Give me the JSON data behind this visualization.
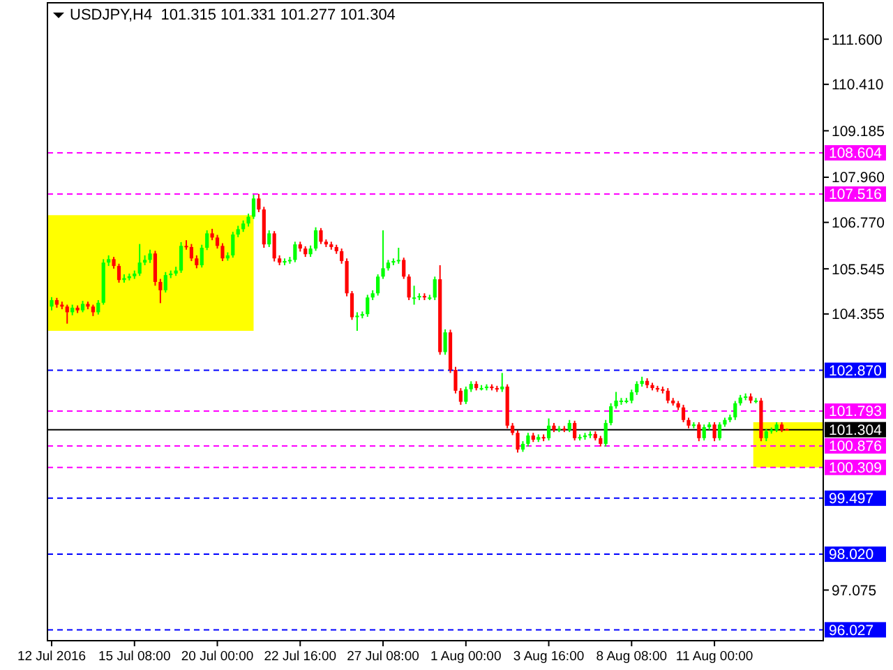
{
  "chart_data": {
    "type": "candlestick",
    "title": "USDJPY,H4  101.315 101.331 101.277 101.304",
    "categories": [
      "12 Jul 2016",
      null,
      null,
      null,
      null,
      null,
      null,
      null,
      null,
      null,
      null,
      null,
      null,
      null,
      null,
      null,
      "15 Jul 08:00",
      null,
      null,
      null,
      null,
      null,
      null,
      null,
      null,
      null,
      null,
      null,
      null,
      null,
      null,
      null,
      "20 Jul 00:00",
      null,
      null,
      null,
      null,
      null,
      null,
      null,
      null,
      null,
      null,
      null,
      null,
      null,
      null,
      null,
      "22 Jul 16:00",
      null,
      null,
      null,
      null,
      null,
      null,
      null,
      null,
      null,
      null,
      null,
      null,
      null,
      null,
      null,
      "27 Jul 08:00",
      null,
      null,
      null,
      null,
      null,
      null,
      null,
      null,
      null,
      null,
      null,
      null,
      null,
      null,
      null,
      "1 Aug 00:00",
      null,
      null,
      null,
      null,
      null,
      null,
      null,
      null,
      null,
      null,
      null,
      null,
      null,
      null,
      null,
      "3 Aug 16:00",
      null,
      null,
      null,
      null,
      null,
      null,
      null,
      null,
      null,
      null,
      null,
      null,
      null,
      null,
      null,
      "8 Aug 08:00",
      null,
      null,
      null,
      null,
      null,
      null,
      null,
      null,
      null,
      null,
      null,
      null,
      null,
      null,
      null,
      "11 Aug 00:00",
      null,
      null,
      null,
      null,
      null,
      null,
      null,
      null,
      null,
      null,
      null,
      null,
      null,
      null
    ],
    "colors": [
      "#00ff00",
      "#ff0000",
      "#ff0000",
      "#ff0000",
      "#00ff00",
      "#ff0000",
      "#00ff00",
      "#ff0000",
      "#ff0000",
      "#00ff00",
      "#00ff00",
      "#00ff00",
      "#ff0000",
      "#ff0000",
      "#00ff00",
      "#00ff00",
      "#00ff00",
      "#00ff00",
      "#00ff00",
      "#00ff00",
      "#ff0000",
      "#ff0000",
      "#00ff00",
      "#00ff00",
      "#00ff00",
      "#00ff00",
      "#ff0000",
      "#ff0000",
      "#ff0000",
      "#00ff00",
      "#00ff00",
      "#ff0000",
      "#ff0000",
      "#ff0000",
      "#00ff00",
      "#00ff00",
      "#00ff00",
      "#00ff00",
      "#00ff00",
      "#00ff00",
      "#ff0000",
      "#ff0000",
      "#00ff00",
      "#ff0000",
      "#ff0000",
      "#00ff00",
      "#00ff00",
      "#00ff00",
      "#ff0000",
      "#ff0000",
      "#00ff00",
      "#00ff00",
      "#ff0000",
      "#ff0000",
      "#ff0000",
      "#ff0000",
      "#ff0000",
      "#ff0000",
      "#ff0000",
      "#00ff00",
      "#00ff00",
      "#00ff00",
      "#00ff00",
      "#00ff00",
      "#00ff00",
      "#00ff00",
      "#00ff00",
      "#00ff00",
      "#ff0000",
      "#ff0000",
      "#00ff00",
      "#00ff00",
      "#ff0000",
      "#00ff00",
      "#00ff00",
      "#ff0000",
      "#00ff00",
      "#ff0000",
      "#ff0000",
      "#ff0000",
      "#00ff00",
      "#00ff00",
      "#ff0000",
      "#00ff00",
      "#00ff00",
      "#ff0000",
      "#ff0000",
      "#00ff00",
      "#ff0000",
      "#ff0000",
      "#ff0000",
      "#00ff00",
      "#00ff00",
      "#ff0000",
      "#00ff00",
      "#ff0000",
      "#00ff00",
      "#ff0000",
      "#00ff00",
      "#ff0000",
      "#00ff00",
      "#ff0000",
      "#00ff00",
      "#00ff00",
      "#00ff00",
      "#ff0000",
      "#ff0000",
      "#00ff00",
      "#00ff00",
      "#00ff00",
      "#00ff00",
      "#00ff00",
      "#00ff00",
      "#00ff00",
      "#00ff00",
      "#ff0000",
      "#ff0000",
      "#ff0000",
      "#ff0000",
      "#ff0000",
      "#ff0000",
      "#ff0000",
      "#ff0000",
      "#ff0000",
      "#00ff00",
      "#ff0000",
      "#00ff00",
      "#00ff00",
      "#ff0000",
      "#00ff00",
      "#00ff00",
      "#00ff00",
      "#00ff00",
      "#00ff00",
      "#00ff00",
      "#ff0000",
      "#00ff00",
      "#ff0000",
      "#00ff00",
      "#00ff00",
      "#00ff00",
      "#ff0000",
      "#ff0000"
    ],
    "ohlc": [
      [
        104.55,
        104.8,
        104.45,
        104.72
      ],
      [
        104.72,
        104.78,
        104.52,
        104.6
      ],
      [
        104.6,
        104.68,
        104.48,
        104.55
      ],
      [
        104.55,
        104.6,
        104.1,
        104.4
      ],
      [
        104.4,
        104.6,
        104.32,
        104.52
      ],
      [
        104.52,
        104.58,
        104.38,
        104.45
      ],
      [
        104.45,
        104.7,
        104.4,
        104.62
      ],
      [
        104.62,
        104.68,
        104.48,
        104.55
      ],
      [
        104.55,
        104.6,
        104.3,
        104.4
      ],
      [
        104.4,
        104.72,
        104.34,
        104.65
      ],
      [
        104.65,
        105.8,
        104.6,
        105.71
      ],
      [
        105.71,
        105.9,
        105.62,
        105.8
      ],
      [
        105.8,
        105.86,
        105.55,
        105.62
      ],
      [
        105.62,
        105.68,
        105.18,
        105.25
      ],
      [
        105.25,
        105.4,
        105.18,
        105.3
      ],
      [
        105.3,
        105.42,
        105.24,
        105.35
      ],
      [
        105.35,
        105.5,
        105.28,
        105.42
      ],
      [
        105.42,
        106.2,
        105.36,
        105.71
      ],
      [
        105.71,
        105.9,
        105.64,
        105.78
      ],
      [
        105.78,
        106.05,
        105.7,
        105.95
      ],
      [
        105.95,
        106.02,
        105.1,
        105.2
      ],
      [
        105.2,
        105.28,
        104.64,
        104.98
      ],
      [
        104.98,
        105.46,
        104.92,
        105.38
      ],
      [
        105.38,
        105.5,
        105.3,
        105.42
      ],
      [
        105.42,
        105.6,
        105.36,
        105.5
      ],
      [
        105.5,
        106.25,
        105.44,
        106.15
      ],
      [
        106.15,
        106.3,
        106.05,
        106.12
      ],
      [
        106.12,
        106.2,
        105.75,
        105.82
      ],
      [
        105.82,
        105.9,
        105.56,
        105.64
      ],
      [
        105.64,
        106.18,
        105.58,
        106.1
      ],
      [
        106.1,
        106.56,
        106.04,
        106.48
      ],
      [
        106.48,
        106.6,
        106.3,
        106.37
      ],
      [
        106.37,
        106.44,
        106.08,
        106.15
      ],
      [
        106.15,
        106.22,
        105.75,
        105.82
      ],
      [
        105.82,
        105.98,
        105.76,
        105.9
      ],
      [
        105.9,
        106.52,
        105.84,
        106.45
      ],
      [
        106.45,
        106.68,
        106.38,
        106.59
      ],
      [
        106.59,
        106.82,
        106.52,
        106.74
      ],
      [
        106.74,
        107.0,
        106.66,
        106.92
      ],
      [
        106.92,
        107.5,
        106.86,
        107.4
      ],
      [
        107.4,
        107.52,
        107.04,
        107.11
      ],
      [
        107.11,
        107.18,
        106.1,
        106.19
      ],
      [
        106.19,
        106.56,
        106.12,
        106.48
      ],
      [
        106.48,
        106.54,
        105.74,
        105.82
      ],
      [
        105.82,
        105.9,
        105.64,
        105.71
      ],
      [
        105.71,
        105.82,
        105.64,
        105.75
      ],
      [
        105.75,
        105.86,
        105.68,
        105.78
      ],
      [
        105.78,
        106.26,
        105.72,
        106.19
      ],
      [
        106.19,
        106.26,
        106.0,
        106.08
      ],
      [
        106.08,
        106.14,
        105.86,
        105.93
      ],
      [
        105.93,
        106.16,
        105.86,
        106.08
      ],
      [
        106.08,
        106.64,
        106.02,
        106.56
      ],
      [
        106.56,
        106.62,
        106.2,
        106.26
      ],
      [
        106.26,
        106.32,
        106.12,
        106.19
      ],
      [
        106.19,
        106.26,
        106.05,
        106.12
      ],
      [
        106.12,
        106.18,
        105.94,
        106.01
      ],
      [
        106.01,
        106.08,
        105.68,
        105.75
      ],
      [
        105.75,
        105.82,
        104.82,
        104.9
      ],
      [
        104.9,
        104.96,
        104.2,
        104.27
      ],
      [
        104.27,
        104.4,
        103.91,
        104.31
      ],
      [
        104.31,
        104.42,
        104.24,
        104.35
      ],
      [
        104.35,
        104.86,
        104.28,
        104.79
      ],
      [
        104.79,
        104.98,
        104.72,
        104.9
      ],
      [
        104.9,
        105.4,
        104.84,
        105.34
      ],
      [
        105.34,
        106.56,
        105.28,
        105.56
      ],
      [
        105.56,
        105.78,
        105.5,
        105.71
      ],
      [
        105.71,
        105.82,
        105.64,
        105.75
      ],
      [
        105.75,
        106.1,
        105.68,
        105.78
      ],
      [
        105.78,
        105.84,
        105.28,
        105.34
      ],
      [
        105.34,
        105.4,
        104.72,
        104.79
      ],
      [
        104.79,
        105.1,
        104.6,
        104.79
      ],
      [
        104.79,
        104.9,
        104.72,
        104.83
      ],
      [
        104.83,
        104.9,
        104.72,
        104.79
      ],
      [
        104.79,
        104.86,
        104.72,
        104.79
      ],
      [
        104.79,
        105.34,
        104.72,
        105.27
      ],
      [
        105.27,
        105.64,
        103.28,
        103.35
      ],
      [
        103.35,
        103.95,
        103.28,
        103.87
      ],
      [
        103.87,
        103.94,
        102.8,
        102.88
      ],
      [
        102.88,
        102.96,
        102.26,
        102.33
      ],
      [
        102.33,
        102.4,
        101.96,
        102.04
      ],
      [
        102.04,
        102.44,
        101.98,
        102.37
      ],
      [
        102.37,
        102.58,
        102.3,
        102.51
      ],
      [
        102.51,
        102.58,
        102.34,
        102.4
      ],
      [
        102.4,
        102.48,
        102.34,
        102.4
      ],
      [
        102.4,
        102.5,
        102.34,
        102.44
      ],
      [
        102.44,
        102.5,
        102.34,
        102.4
      ],
      [
        102.4,
        102.46,
        102.3,
        102.37
      ],
      [
        102.37,
        102.8,
        102.3,
        102.44
      ],
      [
        102.44,
        102.5,
        101.34,
        101.41
      ],
      [
        101.41,
        101.48,
        101.16,
        101.22
      ],
      [
        101.22,
        101.28,
        100.7,
        100.78
      ],
      [
        100.78,
        101.0,
        100.72,
        100.93
      ],
      [
        100.93,
        101.22,
        100.86,
        101.15
      ],
      [
        101.15,
        101.22,
        100.98,
        101.04
      ],
      [
        101.04,
        101.18,
        100.98,
        101.11
      ],
      [
        101.11,
        101.18,
        101.0,
        101.08
      ],
      [
        101.08,
        101.6,
        101.02,
        101.41
      ],
      [
        101.41,
        101.48,
        101.24,
        101.3
      ],
      [
        101.3,
        101.4,
        101.24,
        101.33
      ],
      [
        101.33,
        101.4,
        101.24,
        101.3
      ],
      [
        101.3,
        101.56,
        101.24,
        101.48
      ],
      [
        101.48,
        101.54,
        101.02,
        101.08
      ],
      [
        101.08,
        101.18,
        101.02,
        101.11
      ],
      [
        101.11,
        101.22,
        101.04,
        101.15
      ],
      [
        101.15,
        101.26,
        101.08,
        101.19
      ],
      [
        101.19,
        101.26,
        101.02,
        101.08
      ],
      [
        101.08,
        101.14,
        100.86,
        100.93
      ],
      [
        100.93,
        101.56,
        100.86,
        101.48
      ],
      [
        101.48,
        102.0,
        101.42,
        101.92
      ],
      [
        101.92,
        102.3,
        101.86,
        102.07
      ],
      [
        102.07,
        102.14,
        101.96,
        102.07
      ],
      [
        102.07,
        102.14,
        102.0,
        102.07
      ],
      [
        102.07,
        102.36,
        102.0,
        102.29
      ],
      [
        102.29,
        102.58,
        102.22,
        102.51
      ],
      [
        102.51,
        102.7,
        102.44,
        102.59
      ],
      [
        102.59,
        102.66,
        102.4,
        102.48
      ],
      [
        102.48,
        102.54,
        102.34,
        102.4
      ],
      [
        102.4,
        102.46,
        102.3,
        102.37
      ],
      [
        102.37,
        102.44,
        102.26,
        102.33
      ],
      [
        102.33,
        102.4,
        102.0,
        102.07
      ],
      [
        102.07,
        102.14,
        101.94,
        102.0
      ],
      [
        102.0,
        102.06,
        101.82,
        101.89
      ],
      [
        101.89,
        101.96,
        101.5,
        101.56
      ],
      [
        101.56,
        101.62,
        101.34,
        101.41
      ],
      [
        101.41,
        101.5,
        101.34,
        101.44
      ],
      [
        101.44,
        101.5,
        101.0,
        101.08
      ],
      [
        101.08,
        101.44,
        101.02,
        101.37
      ],
      [
        101.37,
        101.5,
        101.3,
        101.44
      ],
      [
        101.44,
        101.5,
        101.0,
        101.08
      ],
      [
        101.08,
        101.5,
        101.02,
        101.44
      ],
      [
        101.44,
        101.62,
        101.38,
        101.56
      ],
      [
        101.56,
        101.7,
        101.5,
        101.63
      ],
      [
        101.63,
        102.06,
        101.56,
        102.0
      ],
      [
        102.0,
        102.22,
        101.94,
        102.15
      ],
      [
        102.15,
        102.26,
        102.08,
        102.18
      ],
      [
        102.18,
        102.26,
        102.0,
        102.07
      ],
      [
        102.07,
        102.14,
        102.0,
        102.07
      ],
      [
        102.07,
        102.14,
        101.0,
        101.08
      ],
      [
        101.08,
        101.32,
        101.0,
        101.26
      ],
      [
        101.26,
        101.36,
        101.2,
        101.3
      ],
      [
        101.3,
        101.5,
        101.24,
        101.44
      ],
      [
        101.44,
        101.5,
        101.24,
        101.3
      ],
      [
        101.315,
        101.331,
        101.277,
        101.304
      ]
    ],
    "ylim": [
      95.74,
      112.56
    ],
    "yticks": [
      {
        "value": 111.6,
        "label": "111.600"
      },
      {
        "value": 110.41,
        "label": "110.410"
      },
      {
        "value": 109.185,
        "label": "109.185"
      },
      {
        "value": 107.96,
        "label": "107.960"
      },
      {
        "value": 106.77,
        "label": "106.770"
      },
      {
        "value": 105.545,
        "label": "105.545"
      },
      {
        "value": 104.355,
        "label": "104.355"
      },
      {
        "value": 97.075,
        "label": "97.075"
      }
    ],
    "ref_lines": [
      {
        "axis": "y",
        "value": 108.604,
        "label": "108.604",
        "color": "#ff00ff",
        "line_style": "dashed"
      },
      {
        "axis": "y",
        "value": 107.516,
        "label": "107.516",
        "color": "#ff00ff",
        "line_style": "dashed"
      },
      {
        "axis": "y",
        "value": 102.87,
        "label": "102.870",
        "color": "#0000ff",
        "line_style": "dashed"
      },
      {
        "axis": "y",
        "value": 101.793,
        "label": "101.793",
        "color": "#ff00ff",
        "line_style": "dashed"
      },
      {
        "axis": "y",
        "value": 101.304,
        "label": "101.304",
        "color": "#000000",
        "line_style": "solid"
      },
      {
        "axis": "y",
        "value": 100.876,
        "label": "100.876",
        "color": "#ff00ff",
        "line_style": "dashed"
      },
      {
        "axis": "y",
        "value": 100.309,
        "label": "100.309",
        "color": "#ff00ff",
        "line_style": "dashed"
      },
      {
        "axis": "y",
        "value": 99.497,
        "label": "99.497",
        "color": "#0000ff",
        "line_style": "dashed"
      },
      {
        "axis": "y",
        "value": 98.02,
        "label": "98.020",
        "color": "#0000ff",
        "line_style": "dashed"
      },
      {
        "axis": "y",
        "value": 96.027,
        "label": "96.027",
        "color": "#0000ff",
        "line_style": "dashed"
      }
    ]
  }
}
